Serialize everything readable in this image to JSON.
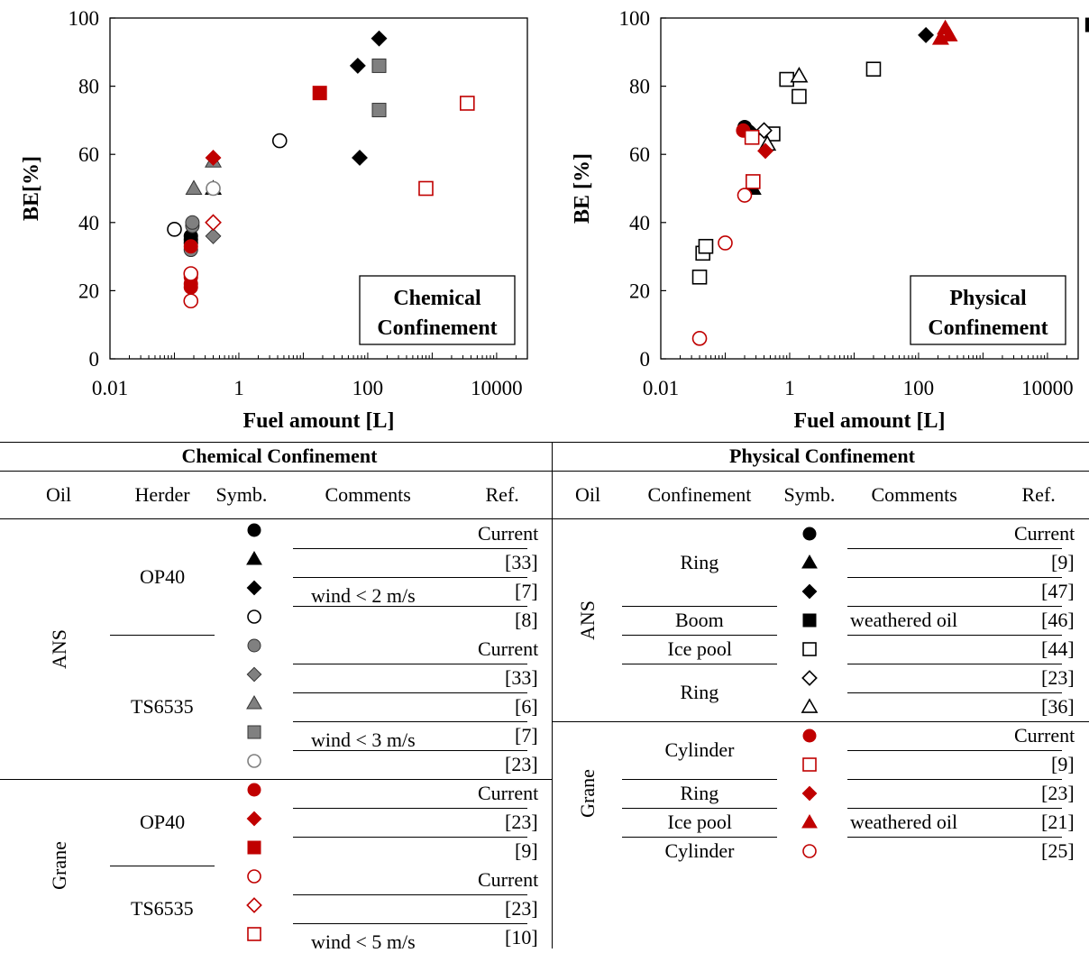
{
  "chart_data": [
    {
      "type": "scatter",
      "xlabel": "Fuel amount  [L]",
      "ylabel": "BE[%]",
      "xscale": "log",
      "xlim": [
        0.01,
        30000
      ],
      "ylim": [
        0,
        100
      ],
      "xticks": [
        "0.01",
        "1",
        "100",
        "10000"
      ],
      "yticks": [
        "0",
        "20",
        "40",
        "60",
        "80",
        "100"
      ],
      "legend_box": [
        "Chemical",
        "Confinement"
      ],
      "legend_placement": "bottom-right",
      "series": [
        {
          "color": "#000000",
          "marker": "circle-filled",
          "points": [
            [
              0.18,
              34
            ],
            [
              0.18,
              35
            ],
            [
              0.18,
              36
            ]
          ]
        },
        {
          "color": "#000000",
          "marker": "triangle-filled",
          "points": [
            [
              0.4,
              50
            ]
          ]
        },
        {
          "color": "#000000",
          "marker": "diamond-filled",
          "points": [
            [
              70,
              86
            ],
            [
              150,
              94
            ],
            [
              75,
              59
            ]
          ]
        },
        {
          "color": "#000000",
          "marker": "circle-open",
          "points": [
            [
              0.1,
              38
            ],
            [
              4.3,
              64
            ]
          ]
        },
        {
          "color": "#808080",
          "marker": "circle-filled",
          "points": [
            [
              0.18,
              32
            ],
            [
              0.19,
              39
            ],
            [
              0.19,
              40
            ],
            [
              0.4,
              50
            ]
          ]
        },
        {
          "color": "#808080",
          "marker": "diamond-filled",
          "points": [
            [
              0.4,
              36
            ]
          ]
        },
        {
          "color": "#808080",
          "marker": "triangle-filled",
          "points": [
            [
              0.2,
              50
            ],
            [
              0.4,
              58
            ]
          ]
        },
        {
          "color": "#808080",
          "marker": "square-filled",
          "points": [
            [
              150,
              86
            ],
            [
              150,
              73
            ]
          ]
        },
        {
          "color": "#808080",
          "marker": "circle-open",
          "points": [
            [
              0.4,
              50
            ]
          ]
        },
        {
          "color": "#c00000",
          "marker": "circle-filled",
          "points": [
            [
              0.18,
              33
            ],
            [
              0.18,
              24
            ],
            [
              0.18,
              22
            ],
            [
              0.18,
              21
            ]
          ]
        },
        {
          "color": "#c00000",
          "marker": "diamond-filled",
          "points": [
            [
              0.4,
              59
            ]
          ]
        },
        {
          "color": "#c00000",
          "marker": "square-filled",
          "points": [
            [
              18,
              78
            ]
          ]
        },
        {
          "color": "#c00000",
          "marker": "circle-open",
          "points": [
            [
              0.18,
              25
            ],
            [
              0.18,
              17
            ]
          ]
        },
        {
          "color": "#c00000",
          "marker": "diamond-open",
          "points": [
            [
              0.4,
              40
            ]
          ]
        },
        {
          "color": "#c00000",
          "marker": "square-open",
          "points": [
            [
              800,
              50
            ],
            [
              3500,
              75
            ]
          ]
        }
      ]
    },
    {
      "type": "scatter",
      "xlabel": "Fuel amount  [L]",
      "ylabel": "BE [%]",
      "xscale": "log",
      "xlim": [
        0.01,
        30000
      ],
      "ylim": [
        0,
        100
      ],
      "xticks": [
        "0.01",
        "1",
        "100",
        "10000"
      ],
      "yticks": [
        "0",
        "20",
        "40",
        "60",
        "80",
        "100"
      ],
      "legend_box": [
        "Physical",
        "Confinement"
      ],
      "legend_placement": "bottom-right",
      "series": [
        {
          "color": "#000000",
          "marker": "circle-filled",
          "points": [
            [
              0.2,
              68
            ],
            [
              0.22,
              67
            ]
          ]
        },
        {
          "color": "#000000",
          "marker": "triangle-filled",
          "points": [
            [
              0.27,
              50
            ]
          ]
        },
        {
          "color": "#000000",
          "marker": "diamond-filled",
          "points": [
            [
              0.27,
              66
            ],
            [
              130,
              95
            ]
          ]
        },
        {
          "color": "#000000",
          "marker": "square-filled",
          "points": [
            [
              50000,
              98
            ]
          ]
        },
        {
          "color": "#000000",
          "marker": "square-open",
          "points": [
            [
              0.04,
              24
            ],
            [
              0.045,
              31
            ],
            [
              0.05,
              33
            ],
            [
              0.55,
              66
            ],
            [
              0.9,
              82
            ],
            [
              1.4,
              77
            ],
            [
              20,
              85
            ]
          ]
        },
        {
          "color": "#000000",
          "marker": "diamond-open",
          "points": [
            [
              0.4,
              67
            ]
          ]
        },
        {
          "color": "#000000",
          "marker": "triangle-open",
          "points": [
            [
              0.45,
              63
            ],
            [
              1.4,
              83
            ]
          ]
        },
        {
          "color": "#c00000",
          "marker": "circle-filled",
          "points": [
            [
              0.19,
              67
            ]
          ]
        },
        {
          "color": "#c00000",
          "marker": "square-open",
          "points": [
            [
              0.26,
              65
            ],
            [
              0.27,
              52
            ]
          ]
        },
        {
          "color": "#c00000",
          "marker": "diamond-filled",
          "points": [
            [
              0.42,
              61
            ]
          ]
        },
        {
          "color": "#c00000",
          "marker": "triangle-filled",
          "points": [
            [
              220,
              94
            ],
            [
              260,
              97
            ],
            [
              300,
              95
            ]
          ]
        },
        {
          "color": "#c00000",
          "marker": "circle-open",
          "points": [
            [
              0.04,
              6
            ],
            [
              0.1,
              34
            ],
            [
              0.2,
              48
            ]
          ]
        }
      ]
    }
  ],
  "table": {
    "left": {
      "title": "Chemical Confinement",
      "headers": [
        "Oil",
        "Herder",
        "Symb.",
        "Comments",
        "Ref."
      ],
      "groups": [
        {
          "oil": "ANS",
          "herders": [
            {
              "name": "OP40",
              "rows": [
                {
                  "symb": "circle-filled",
                  "color": "#000000",
                  "comment": "",
                  "ref": "Current"
                },
                {
                  "symb": "triangle-filled",
                  "color": "#000000",
                  "comment": "",
                  "ref": "[33]"
                },
                {
                  "symb": "diamond-filled",
                  "color": "#000000",
                  "comment": "wind < 2 m/s",
                  "ref": "[7]"
                },
                {
                  "symb": "circle-open",
                  "color": "#000000",
                  "comment": "",
                  "ref": "[8]"
                }
              ]
            },
            {
              "name": "TS6535",
              "rows": [
                {
                  "symb": "circle-filled",
                  "color": "#808080",
                  "comment": "",
                  "ref": "Current"
                },
                {
                  "symb": "diamond-filled",
                  "color": "#808080",
                  "comment": "",
                  "ref": "[33]"
                },
                {
                  "symb": "triangle-filled",
                  "color": "#808080",
                  "comment": "",
                  "ref": "[6]"
                },
                {
                  "symb": "square-filled",
                  "color": "#808080",
                  "comment": "wind < 3 m/s",
                  "ref": "[7]"
                },
                {
                  "symb": "circle-open",
                  "color": "#808080",
                  "comment": "",
                  "ref": "[23]"
                }
              ]
            }
          ]
        },
        {
          "oil": "Grane",
          "herders": [
            {
              "name": "OP40",
              "rows": [
                {
                  "symb": "circle-filled",
                  "color": "#c00000",
                  "comment": "",
                  "ref": "Current"
                },
                {
                  "symb": "diamond-filled",
                  "color": "#c00000",
                  "comment": "",
                  "ref": "[23]"
                },
                {
                  "symb": "square-filled",
                  "color": "#c00000",
                  "comment": "",
                  "ref": "[9]"
                }
              ]
            },
            {
              "name": "TS6535",
              "rows": [
                {
                  "symb": "circle-open",
                  "color": "#c00000",
                  "comment": "",
                  "ref": "Current"
                },
                {
                  "symb": "diamond-open",
                  "color": "#c00000",
                  "comment": "",
                  "ref": "[23]"
                },
                {
                  "symb": "square-open",
                  "color": "#c00000",
                  "comment": "wind < 5 m/s",
                  "ref": "[10]"
                }
              ]
            }
          ]
        }
      ]
    },
    "right": {
      "title": "Physical Confinement",
      "headers": [
        "Oil",
        "Confinement",
        "Symb.",
        "Comments",
        "Ref."
      ],
      "groups": [
        {
          "oil": "ANS",
          "rows": [
            {
              "conf": "Ring",
              "symb": "circle-filled",
              "color": "#000000",
              "comment": "",
              "ref": "Current"
            },
            {
              "conf": "",
              "symb": "triangle-filled",
              "color": "#000000",
              "comment": "",
              "ref": "[9]"
            },
            {
              "conf": "",
              "symb": "diamond-filled",
              "color": "#000000",
              "comment": "",
              "ref": "[47]"
            },
            {
              "conf": "Boom",
              "symb": "square-filled",
              "color": "#000000",
              "comment": "weathered oil",
              "ref": "[46]"
            },
            {
              "conf": "Ice pool",
              "symb": "square-open",
              "color": "#000000",
              "comment": "",
              "ref": "[44]"
            },
            {
              "conf": "Ring",
              "symb": "diamond-open",
              "color": "#000000",
              "comment": "",
              "ref": "[23]"
            },
            {
              "conf": "",
              "symb": "triangle-open",
              "color": "#000000",
              "comment": "",
              "ref": "[36]"
            }
          ]
        },
        {
          "oil": "Grane",
          "rows": [
            {
              "conf": "Cylinder",
              "symb": "circle-filled",
              "color": "#c00000",
              "comment": "",
              "ref": "Current"
            },
            {
              "conf": "",
              "symb": "square-open",
              "color": "#c00000",
              "comment": "",
              "ref": "[9]"
            },
            {
              "conf": "Ring",
              "symb": "diamond-filled",
              "color": "#c00000",
              "comment": "",
              "ref": "[23]"
            },
            {
              "conf": "Ice pool",
              "symb": "triangle-filled",
              "color": "#c00000",
              "comment": "weathered oil",
              "ref": "[21]"
            },
            {
              "conf": "Cylinder",
              "symb": "circle-open",
              "color": "#c00000",
              "comment": "",
              "ref": "[25]"
            }
          ]
        }
      ]
    }
  }
}
